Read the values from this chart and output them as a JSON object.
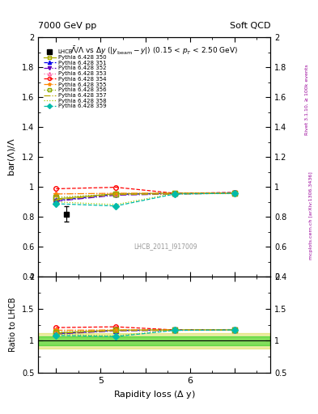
{
  "title_left": "7000 GeV pp",
  "title_right": "Soft QCD",
  "plot_title": "$\\bar{\\Lambda}/\\Lambda$ vs $\\Delta y$ ($|y_\\mathrm{beam}-y|$) (0.15 < $p_T$ < 2.50 GeV)",
  "ylabel_main": "bar($\\Lambda$)/$\\Lambda$",
  "ylabel_ratio": "Ratio to LHCB",
  "xlabel": "Rapidity loss ($\\Delta$ y)",
  "watermark": "LHCB_2011_I917009",
  "right_label": "mcplots.cern.ch [arXiv:1306.3436]",
  "right_label2": "Rivet 3.1.10, ≥ 100k events",
  "xlim": [
    4.3,
    6.9
  ],
  "ylim_main": [
    0.4,
    2.0
  ],
  "ylim_ratio": [
    0.5,
    2.0
  ],
  "yticks_main": [
    0.4,
    0.6,
    0.8,
    1.0,
    1.2,
    1.4,
    1.6,
    1.8,
    2.0
  ],
  "yticks_ratio": [
    0.5,
    1.0,
    1.5,
    2.0
  ],
  "xticks": [
    4.5,
    5.0,
    5.5,
    6.0,
    6.5
  ],
  "xticklabels": [
    "",
    "5",
    "",
    "6",
    ""
  ],
  "lhcb_x": [
    4.62
  ],
  "lhcb_y": [
    0.82
  ],
  "lhcb_yerr": [
    0.05
  ],
  "series": [
    {
      "label": "Pythia 6.428 350",
      "color": "#aaaa00",
      "linestyle": "-",
      "marker": "s",
      "fillstyle": "none",
      "x": [
        4.5,
        5.17,
        5.83,
        6.5
      ],
      "y": [
        0.92,
        0.955,
        0.958,
        0.958
      ]
    },
    {
      "label": "Pythia 6.428 351",
      "color": "#0000ee",
      "linestyle": "--",
      "marker": "^",
      "fillstyle": "full",
      "x": [
        4.5,
        5.17,
        5.83,
        6.5
      ],
      "y": [
        0.91,
        0.95,
        0.957,
        0.962
      ]
    },
    {
      "label": "Pythia 6.428 352",
      "color": "#6600bb",
      "linestyle": "-.",
      "marker": "v",
      "fillstyle": "full",
      "x": [
        4.5,
        5.17,
        5.83,
        6.5
      ],
      "y": [
        0.905,
        0.945,
        0.953,
        0.958
      ]
    },
    {
      "label": "Pythia 6.428 353",
      "color": "#ff66aa",
      "linestyle": ":",
      "marker": "^",
      "fillstyle": "none",
      "x": [
        4.5,
        5.17,
        5.83,
        6.5
      ],
      "y": [
        0.958,
        0.958,
        0.958,
        0.958
      ]
    },
    {
      "label": "Pythia 6.428 354",
      "color": "#ff0000",
      "linestyle": "--",
      "marker": "o",
      "fillstyle": "none",
      "x": [
        4.5,
        5.17,
        5.83,
        6.5
      ],
      "y": [
        0.988,
        0.998,
        0.958,
        0.963
      ]
    },
    {
      "label": "Pythia 6.428 355",
      "color": "#ff8800",
      "linestyle": "-.",
      "marker": "*",
      "fillstyle": "full",
      "x": [
        4.5,
        5.17,
        5.83,
        6.5
      ],
      "y": [
        0.953,
        0.958,
        0.958,
        0.958
      ]
    },
    {
      "label": "Pythia 6.428 356",
      "color": "#88aa00",
      "linestyle": ":",
      "marker": "s",
      "fillstyle": "none",
      "x": [
        4.5,
        5.17,
        5.83,
        6.5
      ],
      "y": [
        0.93,
        0.953,
        0.958,
        0.958
      ]
    },
    {
      "label": "Pythia 6.428 357",
      "color": "#bbaa00",
      "linestyle": "-.",
      "marker": "",
      "fillstyle": "none",
      "x": [
        4.5,
        5.17,
        5.83,
        6.5
      ],
      "y": [
        0.915,
        0.95,
        0.953,
        0.958
      ]
    },
    {
      "label": "Pythia 6.428 358",
      "color": "#aacc00",
      "linestyle": ":",
      "marker": "",
      "fillstyle": "none",
      "x": [
        4.5,
        5.17,
        5.83,
        6.5
      ],
      "y": [
        0.9,
        0.882,
        0.958,
        0.958
      ]
    },
    {
      "label": "Pythia 6.428 359",
      "color": "#00bbaa",
      "linestyle": "--",
      "marker": "D",
      "fillstyle": "full",
      "x": [
        4.5,
        5.17,
        5.83,
        6.5
      ],
      "y": [
        0.888,
        0.873,
        0.953,
        0.958
      ]
    }
  ],
  "ratio_band_yellow": {
    "ylow": 0.88,
    "yhigh": 1.12,
    "color": "#cccc00",
    "alpha": 0.35
  },
  "ratio_band_green": {
    "ylow": 0.93,
    "yhigh": 1.07,
    "color": "#00cc00",
    "alpha": 0.45
  }
}
